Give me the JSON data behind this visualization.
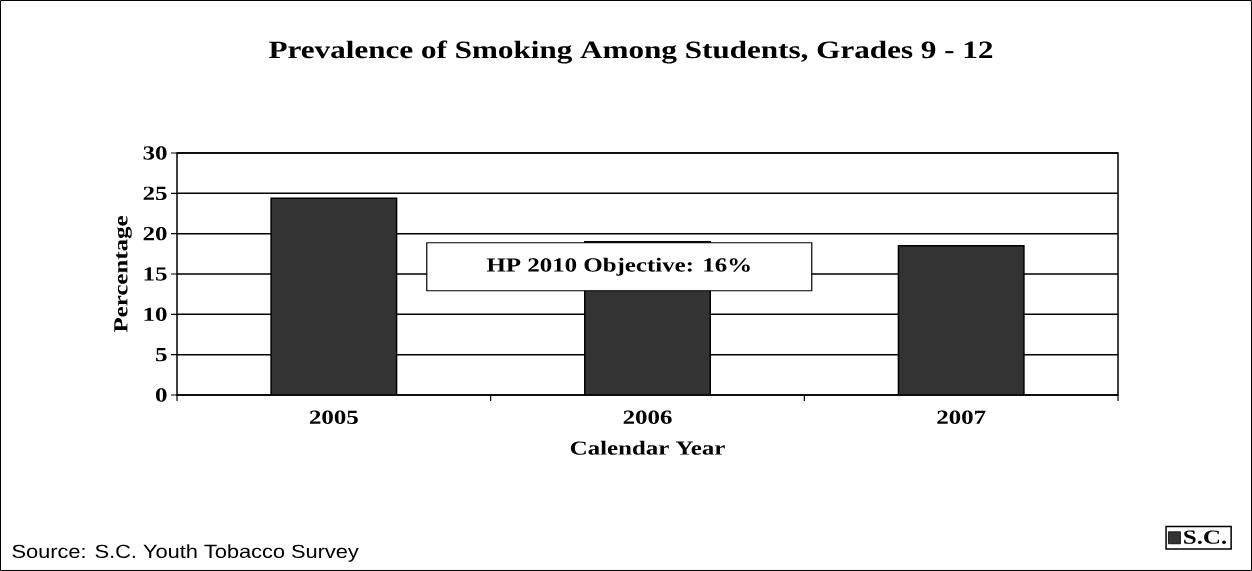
{
  "chart_data": {
    "type": "bar",
    "title": "Prevalence of Smoking Among Students, Grades 9 - 12",
    "xlabel": "Calendar Year",
    "ylabel": "Percentage",
    "categories": [
      "2005",
      "2006",
      "2007"
    ],
    "series": [
      {
        "name": "S.C.",
        "color": "#333333",
        "values": [
          24.4,
          19.0,
          18.5
        ]
      }
    ],
    "ylim": [
      0,
      30
    ],
    "yticks": [
      0,
      5,
      10,
      15,
      20,
      25,
      30
    ],
    "grid": "y",
    "legend": "bottom right",
    "annotations": [
      "HP 2010 Objective: 16%",
      "Source: S.C. Youth Tobacco Survey"
    ]
  }
}
